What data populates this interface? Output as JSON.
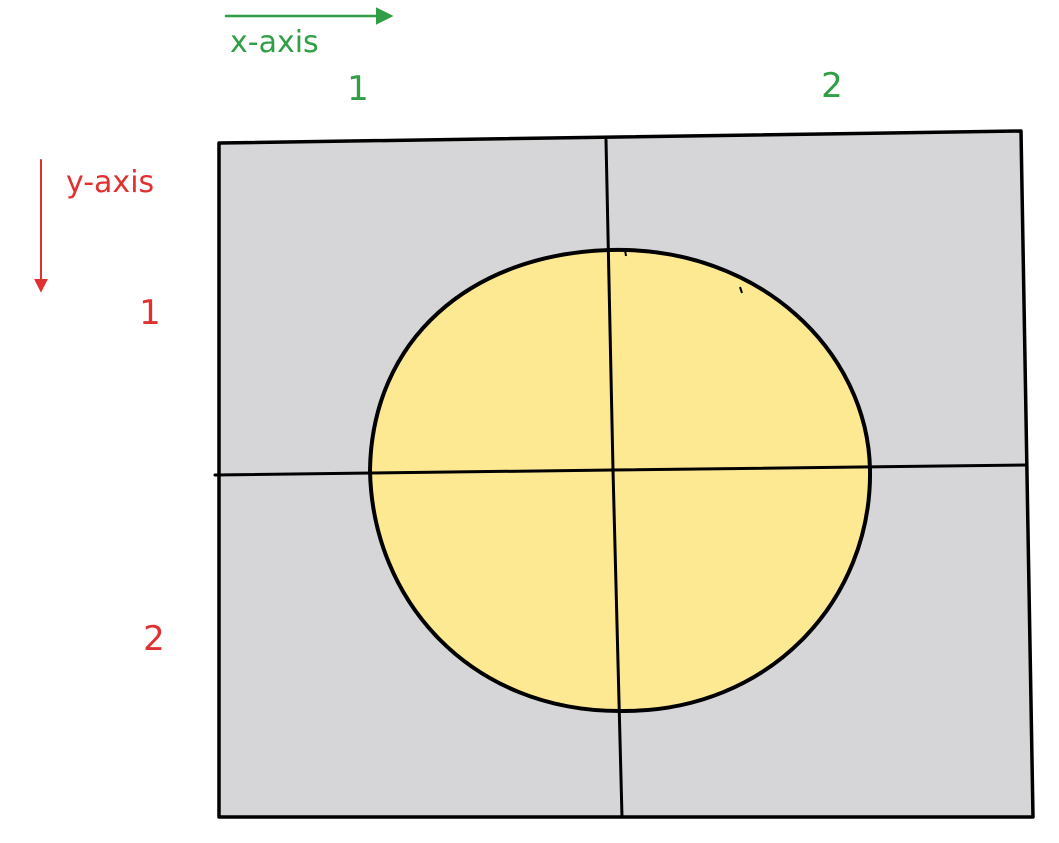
{
  "x_axis": {
    "label": "x-axis",
    "color": "#2f9e44",
    "direction": "right",
    "ticks": [
      "1",
      "2"
    ]
  },
  "y_axis": {
    "label": "y-axis",
    "color": "#e03131",
    "direction": "down",
    "ticks": [
      "1",
      "2"
    ]
  },
  "grid": {
    "columns": 2,
    "rows": 2,
    "cell_color": "#d6d6d8",
    "line_color": "#000000"
  },
  "circle": {
    "fill": "#fde992",
    "stroke": "#000000"
  }
}
